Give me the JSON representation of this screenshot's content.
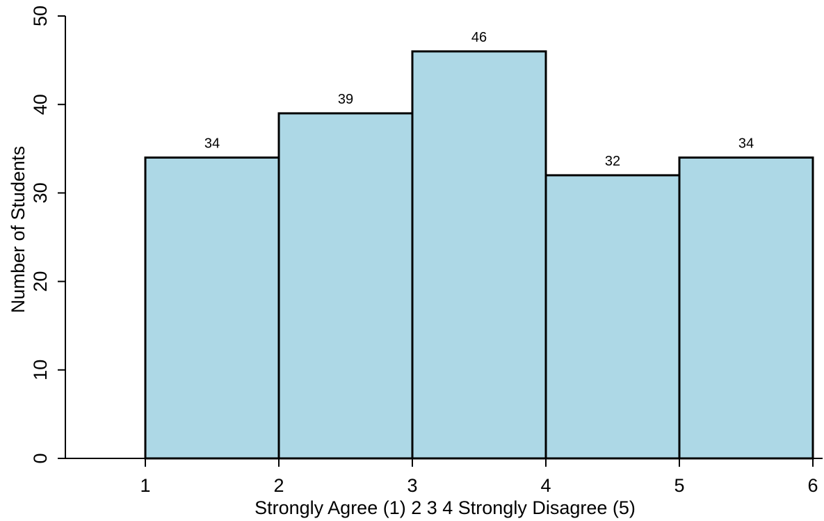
{
  "chart_data": {
    "type": "bar",
    "bins": [
      {
        "x_start": 1,
        "x_end": 2,
        "value": 34
      },
      {
        "x_start": 2,
        "x_end": 3,
        "value": 39
      },
      {
        "x_start": 3,
        "x_end": 4,
        "value": 46
      },
      {
        "x_start": 4,
        "x_end": 5,
        "value": 32
      },
      {
        "x_start": 5,
        "x_end": 6,
        "value": 34
      }
    ],
    "data_labels": [
      "34",
      "39",
      "46",
      "32",
      "34"
    ],
    "x_ticks": [
      "1",
      "2",
      "3",
      "4",
      "5",
      "6"
    ],
    "y_ticks": [
      "0",
      "10",
      "20",
      "30",
      "40",
      "50"
    ],
    "xlabel": "Strongly Agree (1) 2 3 4 Strongly Disagree (5)",
    "ylabel": "Number of Students",
    "title": "",
    "xlim": [
      0.4,
      6.1
    ],
    "ylim": [
      0,
      50
    ],
    "grid": false,
    "bar_fill": "#add8e6",
    "bar_stroke": "#000000",
    "axis_color": "#000000"
  }
}
